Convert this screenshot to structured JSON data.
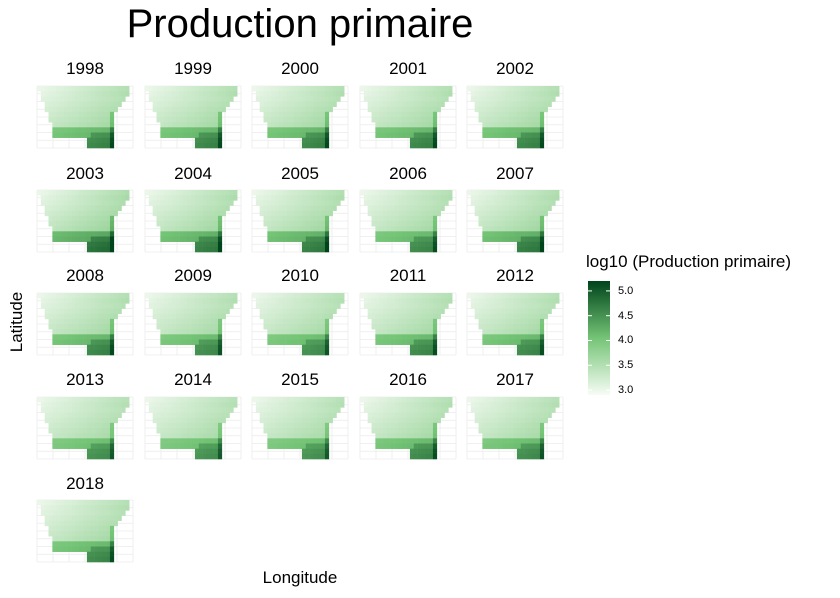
{
  "title": "Production primaire",
  "chart_data": {
    "type": "heatmap",
    "title": "Production primaire",
    "xlabel": "Longitude",
    "ylabel": "Latitude",
    "facet_by": "year",
    "facets": [
      "1998",
      "1999",
      "2000",
      "2001",
      "2002",
      "2003",
      "2004",
      "2005",
      "2006",
      "2007",
      "2008",
      "2009",
      "2010",
      "2011",
      "2012",
      "2013",
      "2014",
      "2015",
      "2016",
      "2017",
      "2018"
    ],
    "facet_intensity": [
      1.0,
      1.0,
      1.0,
      1.0,
      1.0,
      1.12,
      1.04,
      1.04,
      0.98,
      1.05,
      1.0,
      0.96,
      0.95,
      0.98,
      0.98,
      0.94,
      0.93,
      0.93,
      0.98,
      0.96,
      0.98
    ],
    "legend": {
      "title": "log10 (Production primaire)",
      "placement": "right",
      "range": [
        2.9,
        5.2
      ],
      "ticks": [
        3.0,
        3.5,
        4.0,
        4.5,
        5.0
      ],
      "tick_labels": [
        "3.0",
        "3.5",
        "4.0",
        "4.5",
        "5.0"
      ],
      "color_low": "#f7fcf5",
      "color_mid": "#74c476",
      "color_high": "#00441b"
    },
    "grid": true
  }
}
